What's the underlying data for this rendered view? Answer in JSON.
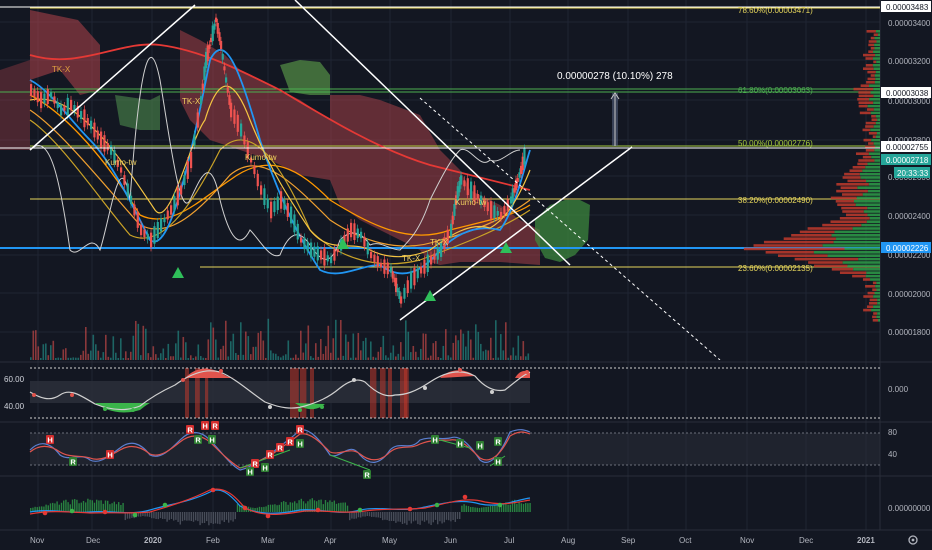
{
  "chart_data": [
    {
      "type": "candlestick",
      "panel": "main",
      "y_axis_ticks": [
        "0.00003400",
        "0.00003200",
        "0.00003000",
        "0.00002800",
        "0.00002600",
        "0.00002400",
        "0.00002200",
        "0.00002000",
        "0.00001800"
      ],
      "ylim": [
        1.7e-05,
        3.5e-05
      ],
      "x_axis_ticks": [
        "Nov",
        "Dec",
        "2020",
        "Feb",
        "Mar",
        "Apr",
        "May",
        "Jun",
        "Jul",
        "Aug",
        "Sep",
        "Oct",
        "Nov",
        "Dec",
        "2021"
      ],
      "price_labels": [
        {
          "text": "0.00003483",
          "value": 3.483e-05,
          "color": "#ffffff",
          "text_color": "#131722"
        },
        {
          "text": "0.00003038",
          "value": 3.038e-05,
          "color": "#ffffff",
          "text_color": "#131722"
        },
        {
          "text": "0.00002755",
          "value": 2.755e-05,
          "color": "#ffffff",
          "text_color": "#131722"
        },
        {
          "text": "0.00002718",
          "value": 2.718e-05,
          "color": "#26a69a",
          "text_color": "#ffffff"
        },
        {
          "text": "20:33:33",
          "value": 2.68e-05,
          "color": "#26a69a",
          "text_color": "#ffffff"
        },
        {
          "text": "0.00002226",
          "value": 2.226e-05,
          "color": "#2196f3",
          "text_color": "#ffffff"
        }
      ],
      "fib_levels": [
        {
          "label": "78.60%(0.00003471)",
          "value": 3.471e-05,
          "color": "#e6d65c"
        },
        {
          "label": "61.80%(0.00003063)",
          "value": 3.063e-05,
          "color": "#4caf50"
        },
        {
          "label": "50.00%(0.00002776)",
          "value": 2.776e-05,
          "color": "#a5c93c"
        },
        {
          "label": "38.20%(0.00002490)",
          "value": 2.49e-05,
          "color": "#e6d65c"
        },
        {
          "label": "23.60%(0.00002135)",
          "value": 2.135e-05,
          "color": "#e6d65c"
        }
      ],
      "measure_label": "0.00000278 (10.10%) 278",
      "annotations": [
        "TK-X",
        "TK-X",
        "Kumo-tw",
        "Kumo-tw",
        "Kumo-tw",
        "TK-X",
        "TK-X"
      ]
    },
    {
      "type": "line",
      "panel": "oscillator_1",
      "y_axis_ticks": [
        "0.000"
      ],
      "left_labels": [
        "60.00",
        "40.00"
      ]
    },
    {
      "type": "line",
      "panel": "oscillator_2",
      "y_axis_ticks": [
        "80",
        "40"
      ],
      "markers": [
        "H",
        "H",
        "R",
        "H",
        "R",
        "R",
        "R",
        "R",
        "R",
        "R",
        "R",
        "R",
        "H",
        "H",
        "H",
        "H",
        "R",
        "H",
        "H",
        "H",
        "R",
        "H"
      ]
    },
    {
      "type": "histogram",
      "panel": "oscillator_3",
      "y_axis_ticks": [
        "0.00000000"
      ]
    }
  ]
}
